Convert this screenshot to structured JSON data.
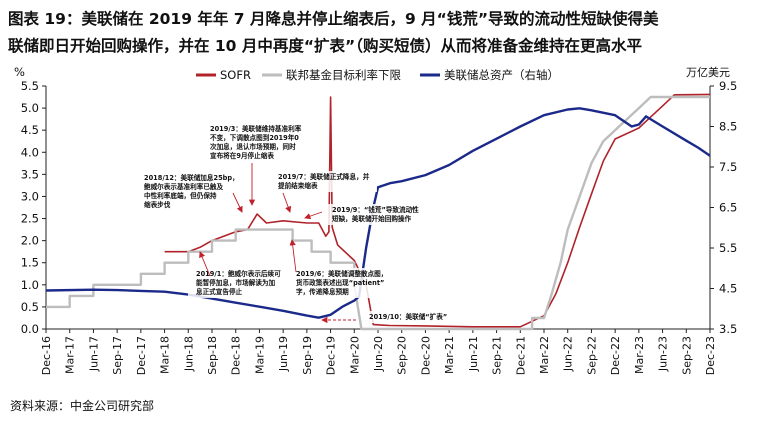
{
  "title_line1": "图表 19：美联储在 2019 年年 7 月降息并停止缩表后，9 月“钱荒”导致的流动性短缺使得美",
  "title_line2": "联储即日开始回购操作，并在 10 月中再度“扩表”（购买短债）从而将准备金维持在更高水平",
  "source": "资料来源：中金公司研究部",
  "chart_data": {
    "type": "line",
    "left_unit": "%",
    "right_unit": "万亿美元",
    "ylim_left": [
      0.0,
      5.5
    ],
    "ylim_right": [
      3.5,
      9.5
    ],
    "left_ticks": [
      "0.0",
      "0.5",
      "1.0",
      "1.5",
      "2.0",
      "2.5",
      "3.0",
      "3.5",
      "4.0",
      "4.5",
      "5.0",
      "5.5"
    ],
    "right_ticks": [
      "3.5",
      "4.5",
      "5.5",
      "6.5",
      "7.5",
      "8.5",
      "9.5"
    ],
    "x_ticks": [
      "Dec-16",
      "Mar-17",
      "Jun-17",
      "Sep-17",
      "Dec-17",
      "Mar-18",
      "Jun-18",
      "Sep-18",
      "Dec-18",
      "Mar-19",
      "Jun-19",
      "Sep-19",
      "Dec-19",
      "Mar-20",
      "Jun-20",
      "Sep-20",
      "Dec-20",
      "Mar-21",
      "Jun-21",
      "Sep-21",
      "Dec-21",
      "Mar-22",
      "Jun-22",
      "Sep-22",
      "Dec-22",
      "Mar-23",
      "Jun-23",
      "Sep-23",
      "Dec-23"
    ],
    "legend": [
      "SOFR",
      "联邦基金目标利率下限",
      "美联储总资产（右轴）"
    ],
    "series_colors": [
      "#b0232a",
      "#bdbdbd",
      "#1b2a8a"
    ],
    "series": [
      {
        "name": "SOFR",
        "axis": "left",
        "points": [
          [
            5.0,
            1.75
          ],
          [
            6.0,
            1.75
          ],
          [
            6.5,
            1.85
          ],
          [
            7.0,
            2.0
          ],
          [
            8.0,
            2.2
          ],
          [
            8.5,
            2.25
          ],
          [
            8.9,
            2.6
          ],
          [
            9.3,
            2.4
          ],
          [
            10.0,
            2.45
          ],
          [
            11.0,
            2.4
          ],
          [
            11.5,
            2.4
          ],
          [
            11.8,
            2.1
          ],
          [
            11.93,
            2.2
          ],
          [
            12.0,
            5.25
          ],
          [
            12.07,
            2.3
          ],
          [
            12.3,
            1.9
          ],
          [
            13.0,
            1.55
          ],
          [
            13.5,
            1.0
          ],
          [
            13.8,
            0.1
          ],
          [
            14.5,
            0.08
          ],
          [
            16.0,
            0.07
          ],
          [
            18.0,
            0.05
          ],
          [
            20.0,
            0.05
          ],
          [
            21.0,
            0.3
          ],
          [
            21.5,
            0.8
          ],
          [
            22.0,
            1.5
          ],
          [
            22.5,
            2.3
          ],
          [
            23.0,
            3.05
          ],
          [
            23.5,
            3.8
          ],
          [
            24.0,
            4.3
          ],
          [
            25.0,
            4.55
          ],
          [
            25.5,
            4.8
          ],
          [
            26.0,
            5.05
          ],
          [
            26.5,
            5.3
          ],
          [
            28.0,
            5.31
          ]
        ]
      },
      {
        "name": "联邦基金目标利率下限",
        "axis": "left",
        "points": [
          [
            0.0,
            0.5
          ],
          [
            1.0,
            0.5
          ],
          [
            1.0,
            0.75
          ],
          [
            2.0,
            0.75
          ],
          [
            2.0,
            1.0
          ],
          [
            4.0,
            1.0
          ],
          [
            4.0,
            1.25
          ],
          [
            5.0,
            1.25
          ],
          [
            5.0,
            1.5
          ],
          [
            6.0,
            1.5
          ],
          [
            6.0,
            1.75
          ],
          [
            7.0,
            1.75
          ],
          [
            7.0,
            2.0
          ],
          [
            8.0,
            2.0
          ],
          [
            8.0,
            2.25
          ],
          [
            10.4,
            2.25
          ],
          [
            10.4,
            2.0
          ],
          [
            11.2,
            2.0
          ],
          [
            11.2,
            1.75
          ],
          [
            12.0,
            1.75
          ],
          [
            12.0,
            1.5
          ],
          [
            13.0,
            1.5
          ],
          [
            13.0,
            1.0
          ],
          [
            13.3,
            0.0
          ],
          [
            20.5,
            0.0
          ],
          [
            20.5,
            0.25
          ],
          [
            21.0,
            0.25
          ],
          [
            21.3,
            0.75
          ],
          [
            21.7,
            1.5
          ],
          [
            22.0,
            2.25
          ],
          [
            22.5,
            3.0
          ],
          [
            23.0,
            3.75
          ],
          [
            23.5,
            4.25
          ],
          [
            24.0,
            4.5
          ],
          [
            24.5,
            4.75
          ],
          [
            25.0,
            5.0
          ],
          [
            25.5,
            5.25
          ],
          [
            28.0,
            5.25
          ]
        ]
      },
      {
        "name": "美联储总资产（右轴）",
        "axis": "right",
        "points": [
          [
            0.0,
            4.45
          ],
          [
            2.0,
            4.47
          ],
          [
            3.0,
            4.46
          ],
          [
            4.0,
            4.44
          ],
          [
            5.0,
            4.42
          ],
          [
            6.0,
            4.35
          ],
          [
            7.0,
            4.25
          ],
          [
            8.0,
            4.15
          ],
          [
            9.0,
            4.05
          ],
          [
            10.0,
            3.95
          ],
          [
            11.0,
            3.83
          ],
          [
            11.5,
            3.78
          ],
          [
            12.0,
            3.85
          ],
          [
            12.5,
            4.05
          ],
          [
            13.0,
            4.2
          ],
          [
            13.2,
            4.3
          ],
          [
            13.5,
            5.5
          ],
          [
            13.8,
            6.5
          ],
          [
            14.0,
            7.0
          ],
          [
            14.5,
            7.1
          ],
          [
            15.0,
            7.15
          ],
          [
            16.0,
            7.3
          ],
          [
            17.0,
            7.55
          ],
          [
            18.0,
            7.9
          ],
          [
            19.0,
            8.2
          ],
          [
            20.0,
            8.5
          ],
          [
            21.0,
            8.78
          ],
          [
            22.0,
            8.92
          ],
          [
            22.5,
            8.95
          ],
          [
            23.0,
            8.9
          ],
          [
            24.0,
            8.78
          ],
          [
            24.7,
            8.5
          ],
          [
            25.0,
            8.55
          ],
          [
            25.3,
            8.75
          ],
          [
            26.0,
            8.5
          ],
          [
            27.0,
            8.15
          ],
          [
            27.5,
            7.98
          ],
          [
            28.0,
            7.78
          ]
        ]
      }
    ],
    "annotations": [
      {
        "lines": [
          "2019/3：美联储维持基准利率",
          "不变，下调散点图到2019年0",
          "次加息，退认市场预期，同时",
          "宣布将在9月停止缩表"
        ]
      },
      {
        "lines": [
          "2018/12：美联储加息25bp，",
          "鲍威尔表示基准利率已触及",
          "中性利率底端，但仍保持",
          "缩表步伐"
        ]
      },
      {
        "lines": [
          "2019/7：美联储正式降息，并",
          "提前结束缩表"
        ]
      },
      {
        "lines": [
          "2019/9：“钱荒”导致流动性",
          "短缺，美联储开始回购操作"
        ]
      },
      {
        "lines": [
          "2019/1：鲍威尔表示后续可",
          "能暂停加息，市场解读为加",
          "息正式宣告停止"
        ]
      },
      {
        "lines": [
          "2019/6：美联储调整散点图，",
          "货币政策表述出现“patient”",
          "字，传递降息预期"
        ]
      },
      {
        "lines": [
          "2019/10：美联储“扩表”"
        ]
      }
    ]
  }
}
